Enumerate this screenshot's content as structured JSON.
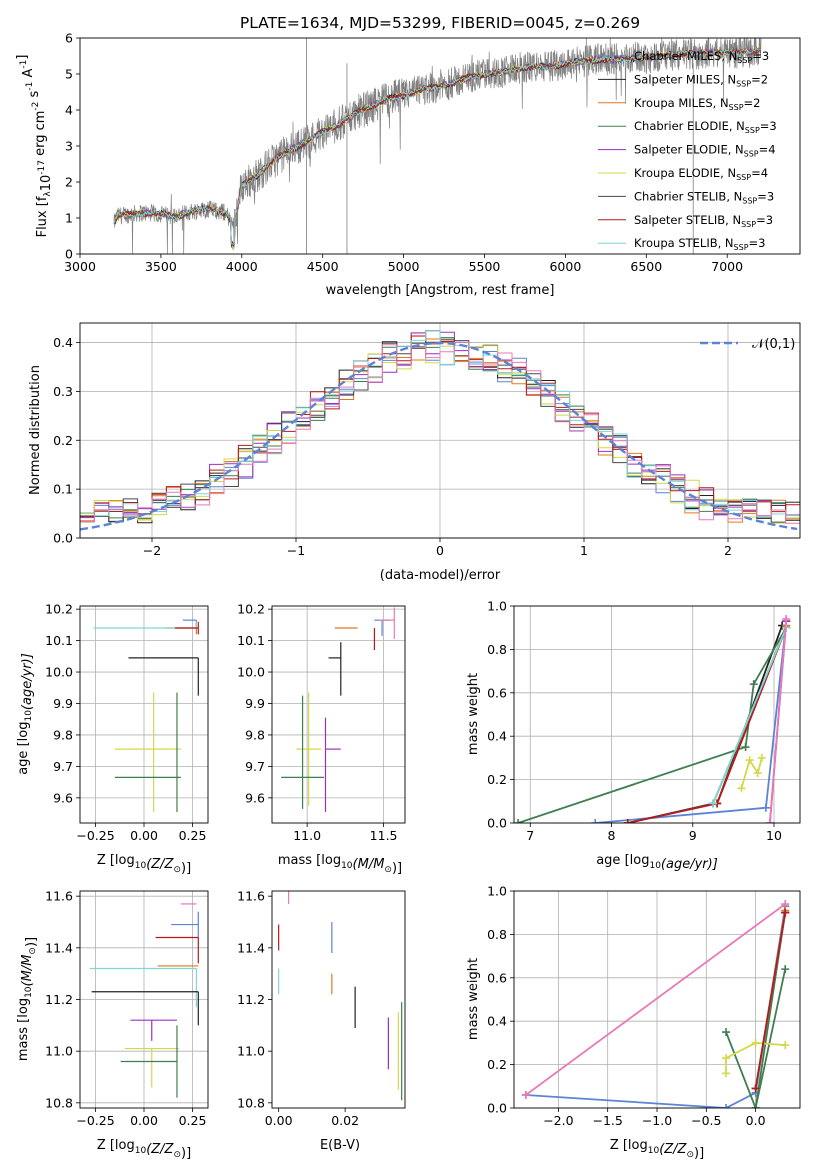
{
  "figure_title": "PLATE=1634, MJD=53299, FIBERID=0045, z=0.269",
  "colors": {
    "Chabrier MILES": "#5b84d6",
    "Salpeter MILES": "#222222",
    "Kroupa MILES": "#e07a1f",
    "Chabrier ELODIE": "#3f7f4f",
    "Salpeter ELODIE": "#9b30c0",
    "Kroupa ELODIE": "#d4d84a",
    "Chabrier STELIB": "#4a4a4a",
    "Salpeter STELIB": "#b51a1a",
    "Kroupa STELIB": "#7fd6d6",
    "observed": "#808080",
    "pink": "#e77ab8",
    "gauss": "#5b84d6"
  },
  "chart_data": [
    {
      "id": "spectrum",
      "type": "line",
      "xlabel": "wavelength [Angstrom, rest frame]",
      "ylabel_parts": [
        "Flux [f",
        "λ",
        "10",
        "-17",
        " erg cm",
        "-2",
        " s",
        "-1",
        " A",
        "-1",
        "]"
      ],
      "xlim": [
        3000,
        7450
      ],
      "ylim": [
        0,
        6
      ],
      "xticks": [
        3000,
        3500,
        4000,
        4500,
        5000,
        5500,
        6000,
        6500,
        7000
      ],
      "yticks": [
        0,
        1,
        2,
        3,
        4,
        5,
        6
      ],
      "legend_position": "upper right",
      "legend": [
        {
          "name": "Chabrier MILES",
          "n": "3"
        },
        {
          "name": "Salpeter MILES",
          "n": "2"
        },
        {
          "name": "Kroupa MILES",
          "n": "2"
        },
        {
          "name": "Chabrier ELODIE",
          "n": "3"
        },
        {
          "name": "Salpeter ELODIE",
          "n": "4"
        },
        {
          "name": "Kroupa ELODIE",
          "n": "4"
        },
        {
          "name": "Chabrier STELIB",
          "n": "3"
        },
        {
          "name": "Salpeter STELIB",
          "n": "3"
        },
        {
          "name": "Kroupa STELIB",
          "n": "3"
        }
      ],
      "legend_sub": "SSP",
      "continuum": [
        [
          3210,
          0.85
        ],
        [
          3230,
          1.05
        ],
        [
          3300,
          1.1
        ],
        [
          3400,
          1.15
        ],
        [
          3500,
          1.1
        ],
        [
          3600,
          1.05
        ],
        [
          3700,
          1.2
        ],
        [
          3800,
          1.25
        ],
        [
          3900,
          1.15
        ],
        [
          3950,
          0.8
        ],
        [
          4000,
          1.9
        ],
        [
          4100,
          2.2
        ],
        [
          4200,
          2.6
        ],
        [
          4300,
          2.9
        ],
        [
          4400,
          3.1
        ],
        [
          4500,
          3.4
        ],
        [
          4600,
          3.6
        ],
        [
          4700,
          3.9
        ],
        [
          4800,
          4.1
        ],
        [
          4900,
          4.3
        ],
        [
          5000,
          4.4
        ],
        [
          5100,
          4.55
        ],
        [
          5200,
          4.65
        ],
        [
          5300,
          4.75
        ],
        [
          5400,
          4.9
        ],
        [
          5500,
          5.0
        ],
        [
          5600,
          5.05
        ],
        [
          5700,
          5.15
        ],
        [
          5800,
          5.2
        ],
        [
          5900,
          5.2
        ],
        [
          6000,
          5.3
        ],
        [
          6100,
          5.35
        ],
        [
          6200,
          5.4
        ],
        [
          6300,
          5.4
        ],
        [
          6400,
          5.45
        ],
        [
          6500,
          5.45
        ],
        [
          6600,
          5.5
        ],
        [
          6700,
          5.55
        ],
        [
          6800,
          5.55
        ],
        [
          6900,
          5.6
        ],
        [
          7000,
          5.6
        ],
        [
          7100,
          5.6
        ],
        [
          7200,
          5.65
        ]
      ]
    },
    {
      "id": "residuals",
      "type": "histogram",
      "xlabel": "(data-model)/error",
      "ylabel": "Normed distribution",
      "xlim": [
        -2.5,
        2.5
      ],
      "ylim": [
        0,
        0.44
      ],
      "xticks": [
        -2,
        -1,
        0,
        1,
        2
      ],
      "yticks": [
        0.0,
        0.1,
        0.2,
        0.3,
        0.4
      ],
      "grid": true,
      "legend": "𝒩(0,1)",
      "legend_position": "upper right",
      "gauss_sigma": 1
    },
    {
      "id": "age-vs-Z",
      "type": "scatter",
      "xlabel_plain": "Z [log",
      "xlabel_sub": "10",
      "xlabel_paren": "(Z/Z",
      "xlabel_sun": "⊙",
      "xlabel_end": ")]",
      "ylabel_plain": "age  [log",
      "ylabel_sub": "10",
      "ylabel_end": "(age/yr)]",
      "xlim": [
        -0.33,
        0.33
      ],
      "ylim": [
        9.52,
        10.21
      ],
      "xticks": [
        -0.25,
        0.0,
        0.25
      ],
      "yticks": [
        9.6,
        9.7,
        9.8,
        9.9,
        10.0,
        10.1,
        10.2
      ],
      "grid": true,
      "points": [
        {
          "series": "Chabrier MILES",
          "x": 0.27,
          "xerr": [
            0.07,
            0.0
          ],
          "y": 10.165,
          "yerr": [
            0.03,
            0.0
          ]
        },
        {
          "series": "Kroupa MILES",
          "x": 0.27,
          "xerr": [
            0.16,
            0.0
          ],
          "y": 10.14,
          "yerr": [
            0.02,
            0.02
          ]
        },
        {
          "series": "Salpeter MILES",
          "x": 0.28,
          "xerr": [
            0.36,
            0.0
          ],
          "y": 10.045,
          "yerr": [
            0.12,
            0.0
          ]
        },
        {
          "series": "Kroupa STELIB",
          "x": 0.27,
          "xerr": [
            0.53,
            0.0
          ],
          "y": 10.14,
          "yerr": [
            0.0,
            0.02
          ]
        },
        {
          "series": "Salpeter STELIB",
          "x": 0.28,
          "xerr": [
            0.12,
            0.0
          ],
          "y": 10.14,
          "yerr": [
            0.02,
            0.02
          ]
        },
        {
          "series": "Kroupa ELODIE",
          "x": 0.05,
          "xerr": [
            0.2,
            0.14
          ],
          "y": 9.755,
          "yerr": [
            0.2,
            0.18
          ]
        },
        {
          "series": "Chabrier ELODIE",
          "x": 0.05,
          "xerr": [
            0.2,
            0.14
          ],
          "y": 9.665,
          "yerr": [
            0.0,
            0.0
          ]
        },
        {
          "series": "Chabrier ELODIE",
          "x": 0.17,
          "xerr": [
            0.0,
            0.0
          ],
          "y": 9.755,
          "yerr": [
            0.2,
            0.18
          ]
        }
      ]
    },
    {
      "id": "age-vs-mass",
      "type": "scatter",
      "xlabel_plain": "mass [log",
      "xlabel_sub": "10",
      "xlabel_paren": "(M/M",
      "xlabel_sun": "⊙",
      "xlabel_end": ")]",
      "xlim": [
        10.77,
        11.64
      ],
      "ylim": [
        9.52,
        10.21
      ],
      "xticks": [
        11.0,
        11.5
      ],
      "yticks": [
        9.6,
        9.7,
        9.8,
        9.9,
        10.0,
        10.1,
        10.2
      ],
      "grid": true,
      "points": [
        {
          "series": "Chabrier MILES",
          "x": 11.49,
          "xerr": [
            0.05,
            0.05
          ],
          "y": 10.165,
          "yerr": [
            0.05,
            0.0
          ]
        },
        {
          "series": "Salpeter MILES",
          "x": 11.22,
          "xerr": [
            0.08,
            0.0
          ],
          "y": 10.045,
          "yerr": [
            0.12,
            0.05
          ]
        },
        {
          "series": "Kroupa MILES",
          "x": 11.33,
          "xerr": [
            0.15,
            0.0
          ],
          "y": 10.14,
          "yerr": [
            0.0,
            0.0
          ]
        },
        {
          "series": "Salpeter STELIB",
          "x": 11.44,
          "xerr": [
            0.0,
            0.0
          ],
          "y": 10.14,
          "yerr": [
            0.07,
            0.0
          ]
        },
        {
          "series": "pink",
          "x": 11.57,
          "xerr": [
            0.1,
            0.0
          ],
          "y": 10.165,
          "yerr": [
            0.06,
            0.04
          ]
        },
        {
          "series": "Kroupa ELODIE",
          "x": 11.01,
          "xerr": [
            0.08,
            0.08
          ],
          "y": 9.755,
          "yerr": [
            0.18,
            0.18
          ]
        },
        {
          "series": "Salpeter ELODIE",
          "x": 11.12,
          "xerr": [
            0.0,
            0.1
          ],
          "y": 9.755,
          "yerr": [
            0.2,
            0.1
          ]
        },
        {
          "series": "Chabrier ELODIE",
          "x": 10.97,
          "xerr": [
            0.14,
            0.14
          ],
          "y": 9.665,
          "yerr": [
            0.1,
            0.26
          ]
        }
      ]
    },
    {
      "id": "massweight-vs-age",
      "type": "line",
      "ylabel": "mass weight",
      "xlabel_plain": "age  [log",
      "xlabel_sub": "10",
      "xlabel_end": "(age/yr)]",
      "xlim": [
        6.8,
        10.32
      ],
      "ylim": [
        0,
        1.0
      ],
      "xticks": [
        7,
        8,
        9,
        10
      ],
      "yticks": [
        0.0,
        0.2,
        0.4,
        0.6,
        0.8,
        1.0
      ],
      "grid": true,
      "series": [
        {
          "name": "Chabrier MILES",
          "x": [
            7.8,
            9.9,
            10.15
          ],
          "y": [
            0.0,
            0.07,
            0.93
          ]
        },
        {
          "name": "Salpeter MILES",
          "x": [
            9.3,
            10.1
          ],
          "y": [
            0.09,
            0.91
          ]
        },
        {
          "name": "Kroupa MILES",
          "x": [
            9.3,
            10.15
          ],
          "y": [
            0.09,
            0.91
          ]
        },
        {
          "name": "Chabrier ELODIE",
          "x": [
            6.85,
            9.65,
            9.75,
            10.15
          ],
          "y": [
            0.0,
            0.35,
            0.64,
            0.9
          ]
        },
        {
          "name": "Salpeter ELODIE",
          "x": [
            9.95,
            10.15
          ],
          "y": [
            0.0,
            0.93
          ]
        },
        {
          "name": "Kroupa ELODIE",
          "x": [
            9.6,
            9.7,
            9.8,
            9.85
          ],
          "y": [
            0.16,
            0.29,
            0.23,
            0.3
          ]
        },
        {
          "name": "Chabrier STELIB",
          "x": [
            8.2,
            9.25,
            10.15
          ],
          "y": [
            0.0,
            0.09,
            0.9
          ]
        },
        {
          "name": "Salpeter STELIB",
          "x": [
            8.2,
            9.3,
            10.15
          ],
          "y": [
            0.0,
            0.09,
            0.9
          ]
        },
        {
          "name": "Kroupa STELIB",
          "x": [
            9.25,
            10.15
          ],
          "y": [
            0.09,
            0.9
          ]
        },
        {
          "name": "pink",
          "x": [
            9.95,
            10.15
          ],
          "y": [
            0.0,
            0.94
          ]
        }
      ]
    },
    {
      "id": "mass-vs-Z",
      "type": "scatter",
      "xlabel_plain": "Z [log",
      "xlabel_sub": "10",
      "xlabel_paren": "(Z/Z",
      "xlabel_sun": "⊙",
      "xlabel_end": ")]",
      "ylabel_plain": "mass [log",
      "ylabel_sub": "10",
      "ylabel_paren": "(M/M",
      "ylabel_sun": "⊙",
      "ylabel_end": ")]",
      "xlim": [
        -0.33,
        0.33
      ],
      "ylim": [
        10.78,
        11.62
      ],
      "xticks": [
        -0.25,
        0.0,
        0.25
      ],
      "yticks": [
        10.8,
        11.0,
        11.2,
        11.4,
        11.6
      ],
      "grid": true,
      "points": [
        {
          "series": "pink",
          "x": 0.27,
          "xerr": [
            0.08,
            0.0
          ],
          "y": 11.57,
          "yerr": [
            0.0,
            0.0
          ]
        },
        {
          "series": "Chabrier MILES",
          "x": 0.28,
          "xerr": [
            0.14,
            0.0
          ],
          "y": 11.49,
          "yerr": [
            0.05,
            0.05
          ]
        },
        {
          "series": "Salpeter STELIB",
          "x": 0.28,
          "xerr": [
            0.22,
            0.0
          ],
          "y": 11.44,
          "yerr": [
            0.1,
            0.0
          ]
        },
        {
          "series": "Kroupa MILES",
          "x": 0.28,
          "xerr": [
            0.21,
            0.0
          ],
          "y": 11.33,
          "yerr": [
            0.0,
            0.0
          ]
        },
        {
          "series": "Kroupa STELIB",
          "x": 0.27,
          "xerr": [
            0.55,
            0.0
          ],
          "y": 11.32,
          "yerr": [
            0.15,
            0.0
          ]
        },
        {
          "series": "Salpeter MILES",
          "x": 0.28,
          "xerr": [
            0.55,
            0.0
          ],
          "y": 11.23,
          "yerr": [
            0.13,
            0.0
          ]
        },
        {
          "series": "Salpeter ELODIE",
          "x": 0.04,
          "xerr": [
            0.11,
            0.13
          ],
          "y": 11.12,
          "yerr": [
            0.08,
            0.0
          ]
        },
        {
          "series": "Kroupa ELODIE",
          "x": 0.04,
          "xerr": [
            0.14,
            0.14
          ],
          "y": 11.01,
          "yerr": [
            0.15,
            0.0
          ]
        },
        {
          "series": "Chabrier ELODIE",
          "x": 0.04,
          "xerr": [
            0.16,
            0.13
          ],
          "y": 10.96,
          "yerr": [
            0.0,
            0.0
          ]
        },
        {
          "series": "Chabrier ELODIE",
          "x": 0.17,
          "xerr": [
            0.0,
            0.0
          ],
          "y": 10.96,
          "yerr": [
            0.14,
            0.14
          ]
        }
      ]
    },
    {
      "id": "mass-vs-EBV",
      "type": "scatter",
      "xlabel": "E(B-V)",
      "xlim": [
        -0.002,
        0.038
      ],
      "ylim": [
        10.78,
        11.62
      ],
      "xticks": [
        0.0,
        0.02
      ],
      "yticks": [
        10.8,
        11.0,
        11.2,
        11.4,
        11.6
      ],
      "grid": false,
      "points": [
        {
          "series": "Salpeter STELIB",
          "x": 0.0,
          "y": 11.44,
          "yerr": [
            0.05,
            0.05
          ]
        },
        {
          "series": "Kroupa STELIB",
          "x": 0.0,
          "y": 11.32,
          "yerr": [
            0.1,
            0.0
          ]
        },
        {
          "series": "pink",
          "x": 0.003,
          "y": 11.57,
          "yerr": [
            0.0,
            0.1
          ]
        },
        {
          "series": "Chabrier MILES",
          "x": 0.016,
          "y": 11.44,
          "yerr": [
            0.06,
            0.06
          ]
        },
        {
          "series": "Kroupa MILES",
          "x": 0.016,
          "y": 11.3,
          "yerr": [
            0.08,
            0.0
          ]
        },
        {
          "series": "Salpeter MILES",
          "x": 0.023,
          "y": 11.17,
          "yerr": [
            0.08,
            0.08
          ]
        },
        {
          "series": "Salpeter ELODIE",
          "x": 0.033,
          "y": 11.03,
          "yerr": [
            0.1,
            0.1
          ]
        },
        {
          "series": "Kroupa ELODIE",
          "x": 0.036,
          "y": 11.0,
          "yerr": [
            0.15,
            0.15
          ]
        },
        {
          "series": "Chabrier ELODIE",
          "x": 0.037,
          "y": 11.0,
          "yerr": [
            0.19,
            0.19
          ]
        }
      ]
    },
    {
      "id": "massweight-vs-Z",
      "type": "line",
      "ylabel": "mass weight",
      "xlabel_plain": "Z [log",
      "xlabel_sub": "10",
      "xlabel_paren": "(Z/Z",
      "xlabel_sun": "⊙",
      "xlabel_end": ")]",
      "xlim": [
        -2.45,
        0.45
      ],
      "ylim": [
        0,
        1.0
      ],
      "xticks": [
        -2.0,
        -1.5,
        -1.0,
        -0.5,
        0.0
      ],
      "yticks": [
        0.0,
        0.2,
        0.4,
        0.6,
        0.8,
        1.0
      ],
      "grid": true,
      "series": [
        {
          "name": "Chabrier MILES",
          "x": [
            -2.33,
            -0.3,
            0.0,
            0.3
          ],
          "y": [
            0.06,
            0.0,
            0.07,
            0.93
          ]
        },
        {
          "name": "pink",
          "x": [
            -2.33,
            0.3
          ],
          "y": [
            0.06,
            0.94
          ]
        },
        {
          "name": "Kroupa MILES",
          "x": [
            0.0,
            0.3
          ],
          "y": [
            0.09,
            0.91
          ]
        },
        {
          "name": "Chabrier ELODIE",
          "x": [
            -0.3,
            0.0,
            0.3
          ],
          "y": [
            0.35,
            0.0,
            0.64
          ]
        },
        {
          "name": "Chabrier ELODIE",
          "x": [
            0.0,
            0.3
          ],
          "y": [
            0.0,
            0.9
          ]
        },
        {
          "name": "Kroupa ELODIE",
          "x": [
            -0.3,
            -0.3,
            0.0,
            0.3
          ],
          "y": [
            0.16,
            0.23,
            0.3,
            0.29
          ]
        },
        {
          "name": "Chabrier STELIB",
          "x": [
            0.0,
            0.3
          ],
          "y": [
            0.09,
            0.9
          ]
        },
        {
          "name": "Kroupa STELIB",
          "x": [
            0.0,
            0.3
          ],
          "y": [
            0.09,
            0.9
          ]
        },
        {
          "name": "Salpeter STELIB",
          "x": [
            0.0,
            0.3
          ],
          "y": [
            0.09,
            0.9
          ]
        }
      ]
    }
  ]
}
